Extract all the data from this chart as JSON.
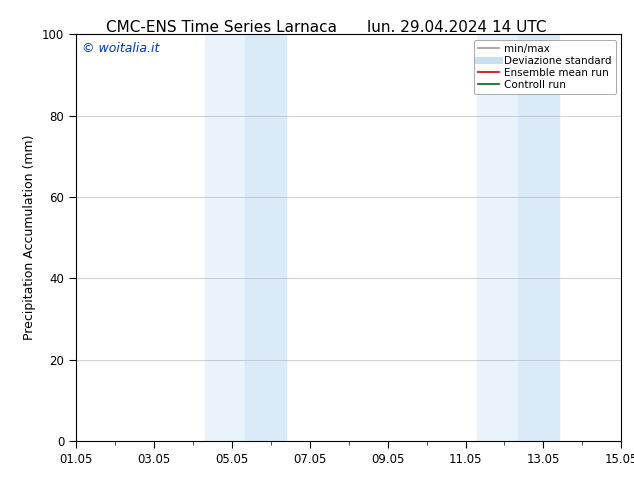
{
  "title_left": "CMC-ENS Time Series Larnaca",
  "title_right": "lun. 29.04.2024 14 UTC",
  "ylabel": "Precipitation Accumulation (mm)",
  "ylim": [
    0,
    100
  ],
  "xlim": [
    0,
    14
  ],
  "xtick_labels": [
    "01.05",
    "03.05",
    "05.05",
    "07.05",
    "09.05",
    "11.05",
    "13.05",
    "15.05"
  ],
  "xtick_positions": [
    0,
    2,
    4,
    6,
    8,
    10,
    12,
    14
  ],
  "ytick_positions": [
    0,
    20,
    40,
    60,
    80,
    100
  ],
  "ytick_labels": [
    "0",
    "20",
    "40",
    "60",
    "80",
    "100"
  ],
  "shaded_regions": [
    {
      "xmin": 3.3,
      "xmax": 4.35,
      "color": "#daeaf8"
    },
    {
      "xmin": 4.35,
      "xmax": 5.4,
      "color": "#daeaf8"
    },
    {
      "xmin": 10.3,
      "xmax": 11.35,
      "color": "#daeaf8"
    },
    {
      "xmin": 11.35,
      "xmax": 12.4,
      "color": "#daeaf8"
    }
  ],
  "shaded_dividers": [
    4.35,
    11.35
  ],
  "legend_entries": [
    {
      "label": "min/max",
      "color": "#999999",
      "linewidth": 1.2,
      "linestyle": "-"
    },
    {
      "label": "Deviazione standard",
      "color": "#c8dff0",
      "linewidth": 5,
      "linestyle": "-"
    },
    {
      "label": "Ensemble mean run",
      "color": "#cc0000",
      "linewidth": 1.2,
      "linestyle": "-"
    },
    {
      "label": "Controll run",
      "color": "#006600",
      "linewidth": 1.2,
      "linestyle": "-"
    }
  ],
  "watermark_text": "© woitalia.it",
  "watermark_color": "#0033cc",
  "background_color": "#ffffff",
  "title_fontsize": 11,
  "ylabel_fontsize": 9,
  "tick_fontsize": 8.5,
  "legend_fontsize": 7.5,
  "watermark_fontsize": 9
}
